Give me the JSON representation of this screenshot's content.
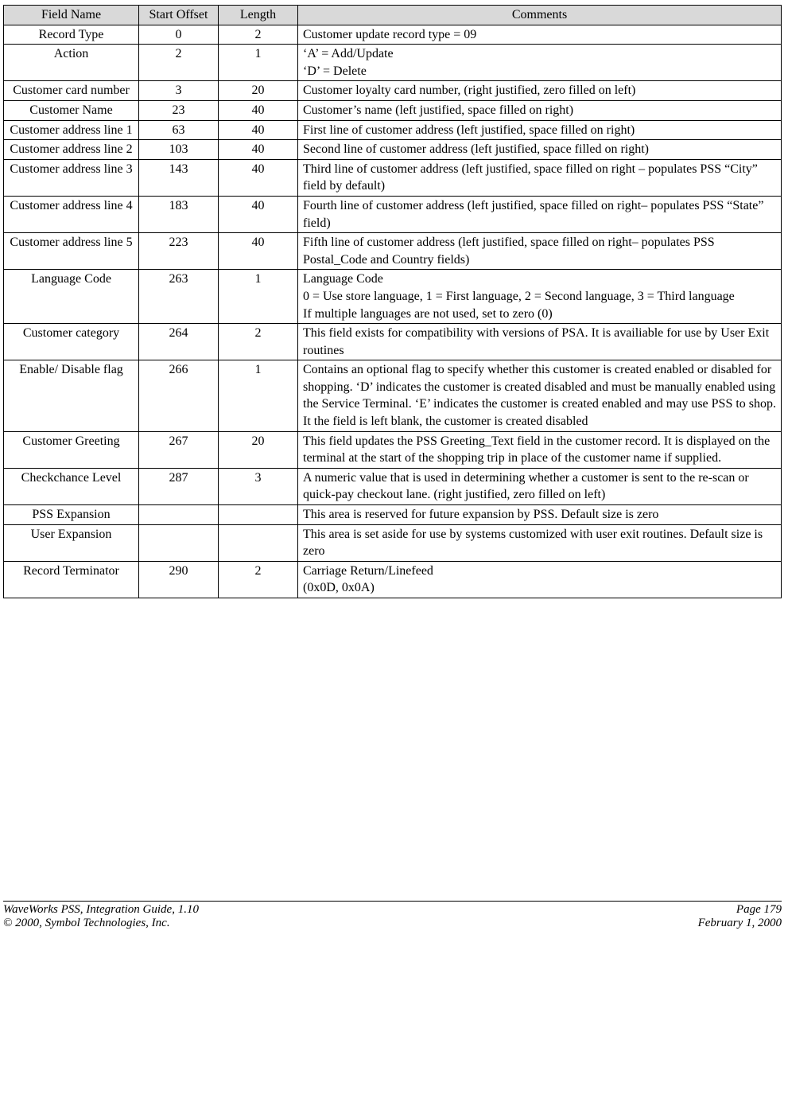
{
  "table": {
    "columns": [
      "Field Name",
      "Start Offset",
      "Length",
      "Comments"
    ],
    "header_bg": "#d9d9d9",
    "border_color": "#000000",
    "col_align": [
      "center",
      "center",
      "center",
      "left"
    ],
    "rows": [
      {
        "field": "Record Type",
        "offset": "0",
        "length": "2",
        "comments": "Customer update record type = 09"
      },
      {
        "field": "Action",
        "offset": "2",
        "length": "1",
        "comments": "‘A’ = Add/Update\n‘D’ = Delete"
      },
      {
        "field": "Customer card number",
        "offset": "3",
        "length": "20",
        "comments": "Customer loyalty card number, (right justified, zero filled on left)"
      },
      {
        "field": "Customer Name",
        "offset": "23",
        "length": "40",
        "comments": "Customer’s name (left justified, space filled on right)"
      },
      {
        "field": "Customer address line 1",
        "offset": "63",
        "length": "40",
        "comments": "First line of customer address (left justified, space filled on right)"
      },
      {
        "field": "Customer address line 2",
        "offset": "103",
        "length": "40",
        "comments": "Second line of customer address (left justified, space filled on right)"
      },
      {
        "field": "Customer address line 3",
        "offset": "143",
        "length": "40",
        "comments": "Third line of customer address (left justified, space filled on right – populates PSS “City” field by default)"
      },
      {
        "field": "Customer address line 4",
        "offset": "183",
        "length": "40",
        "comments": "Fourth line of customer address (left justified, space filled on right– populates PSS “State” field)"
      },
      {
        "field": "Customer address line 5",
        "offset": "223",
        "length": "40",
        "comments": "Fifth line of customer address (left justified, space filled on right– populates PSS Postal_Code and Country  fields)"
      },
      {
        "field": "Language Code",
        "offset": "263",
        "length": "1",
        "comments": "Language Code\n0 = Use store language, 1 = First language, 2 = Second language, 3 = Third language\nIf multiple languages are not used, set to zero (0)"
      },
      {
        "field": "Customer category",
        "offset": "264",
        "length": "2",
        "comments": "This field exists for compatibility with versions of PSA.  It is availiable for use by User Exit routines"
      },
      {
        "field": "Enable/ Disable flag",
        "offset": "266",
        "length": "1",
        "comments": "Contains an optional flag to specify whether this customer is created enabled or disabled for shopping.  ‘D’ indicates the customer is created disabled and must be manually enabled using the Service Terminal.  ‘E’ indicates the customer is created enabled and may use PSS to shop.  It the field is left blank, the customer is created disabled"
      },
      {
        "field": "Customer Greeting",
        "offset": "267",
        "length": "20",
        "comments": "This field updates the PSS Greeting_Text field in the customer record.  It is displayed on the terminal at the start of the shopping trip in place of the customer name if supplied."
      },
      {
        "field": "Checkchance Level",
        "offset": "287",
        "length": "3",
        "comments": "A numeric value that is used in determining whether a customer is sent to the re-scan or quick-pay checkout lane.  (right justified, zero filled on left)"
      },
      {
        "field": "PSS Expansion",
        "offset": "",
        "length": "",
        "comments": "This area is reserved for future expansion by PSS.  Default size is zero"
      },
      {
        "field": "User Expansion",
        "offset": "",
        "length": "",
        "comments": "This area is set aside for use by systems customized with user exit routines.  Default size is zero"
      },
      {
        "field": "Record Terminator",
        "offset": "290",
        "length": "2",
        "comments": "Carriage Return/Linefeed\n(0x0D, 0x0A)"
      }
    ]
  },
  "footer": {
    "left_line1": "WaveWorks PSS, Integration Guide, 1.10",
    "left_line2": "© 2000, Symbol Technologies, Inc.",
    "right_line1": "Page 179",
    "right_line2": "February 1, 2000"
  }
}
